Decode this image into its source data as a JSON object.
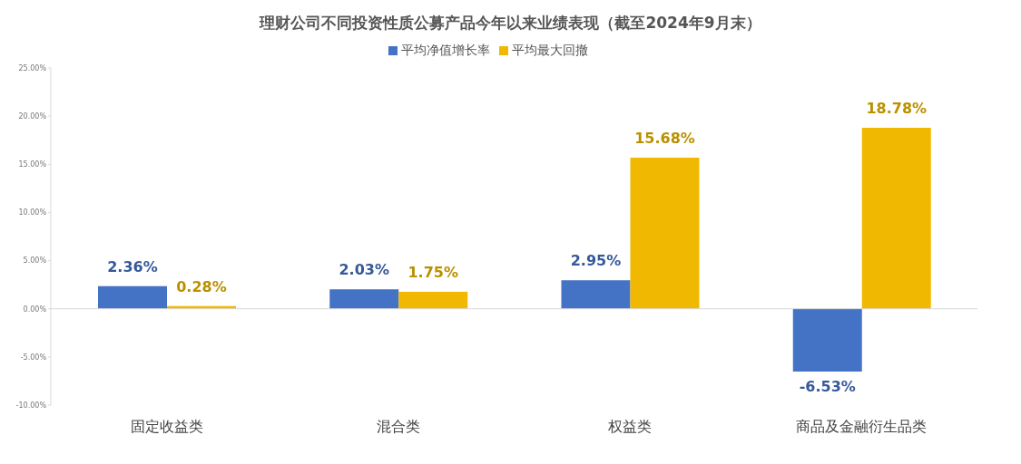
{
  "chart_data": {
    "type": "bar",
    "title": "理财公司不同投资性质公募产品今年以来业绩表现（截至2024年9月末）",
    "categories": [
      "固定收益类",
      "混合类",
      "权益类",
      "商品及金融衍生品类"
    ],
    "series": [
      {
        "name": "平均净值增长率",
        "color": "#4472c4",
        "values": [
          2.36,
          2.03,
          2.95,
          -6.53
        ],
        "value_labels": [
          "2.36%",
          "2.03%",
          "2.95%",
          "-6.53%"
        ]
      },
      {
        "name": "平均最大回撤",
        "color": "#f0b800",
        "values": [
          0.28,
          1.75,
          15.68,
          18.78
        ],
        "value_labels": [
          "0.28%",
          "1.75%",
          "15.68%",
          "18.78%"
        ]
      }
    ],
    "ylim": [
      -10,
      25
    ],
    "yticks": [
      {
        "value": -10,
        "label": "-10.00%"
      },
      {
        "value": -5,
        "label": "-5.00%"
      },
      {
        "value": 0,
        "label": "0.00%"
      },
      {
        "value": 5,
        "label": "5.00%"
      },
      {
        "value": 10,
        "label": "10.00%"
      },
      {
        "value": 15,
        "label": "15.00%"
      },
      {
        "value": 20,
        "label": "20.00%"
      },
      {
        "value": 25,
        "label": "25.00%"
      }
    ],
    "legend": "top"
  }
}
